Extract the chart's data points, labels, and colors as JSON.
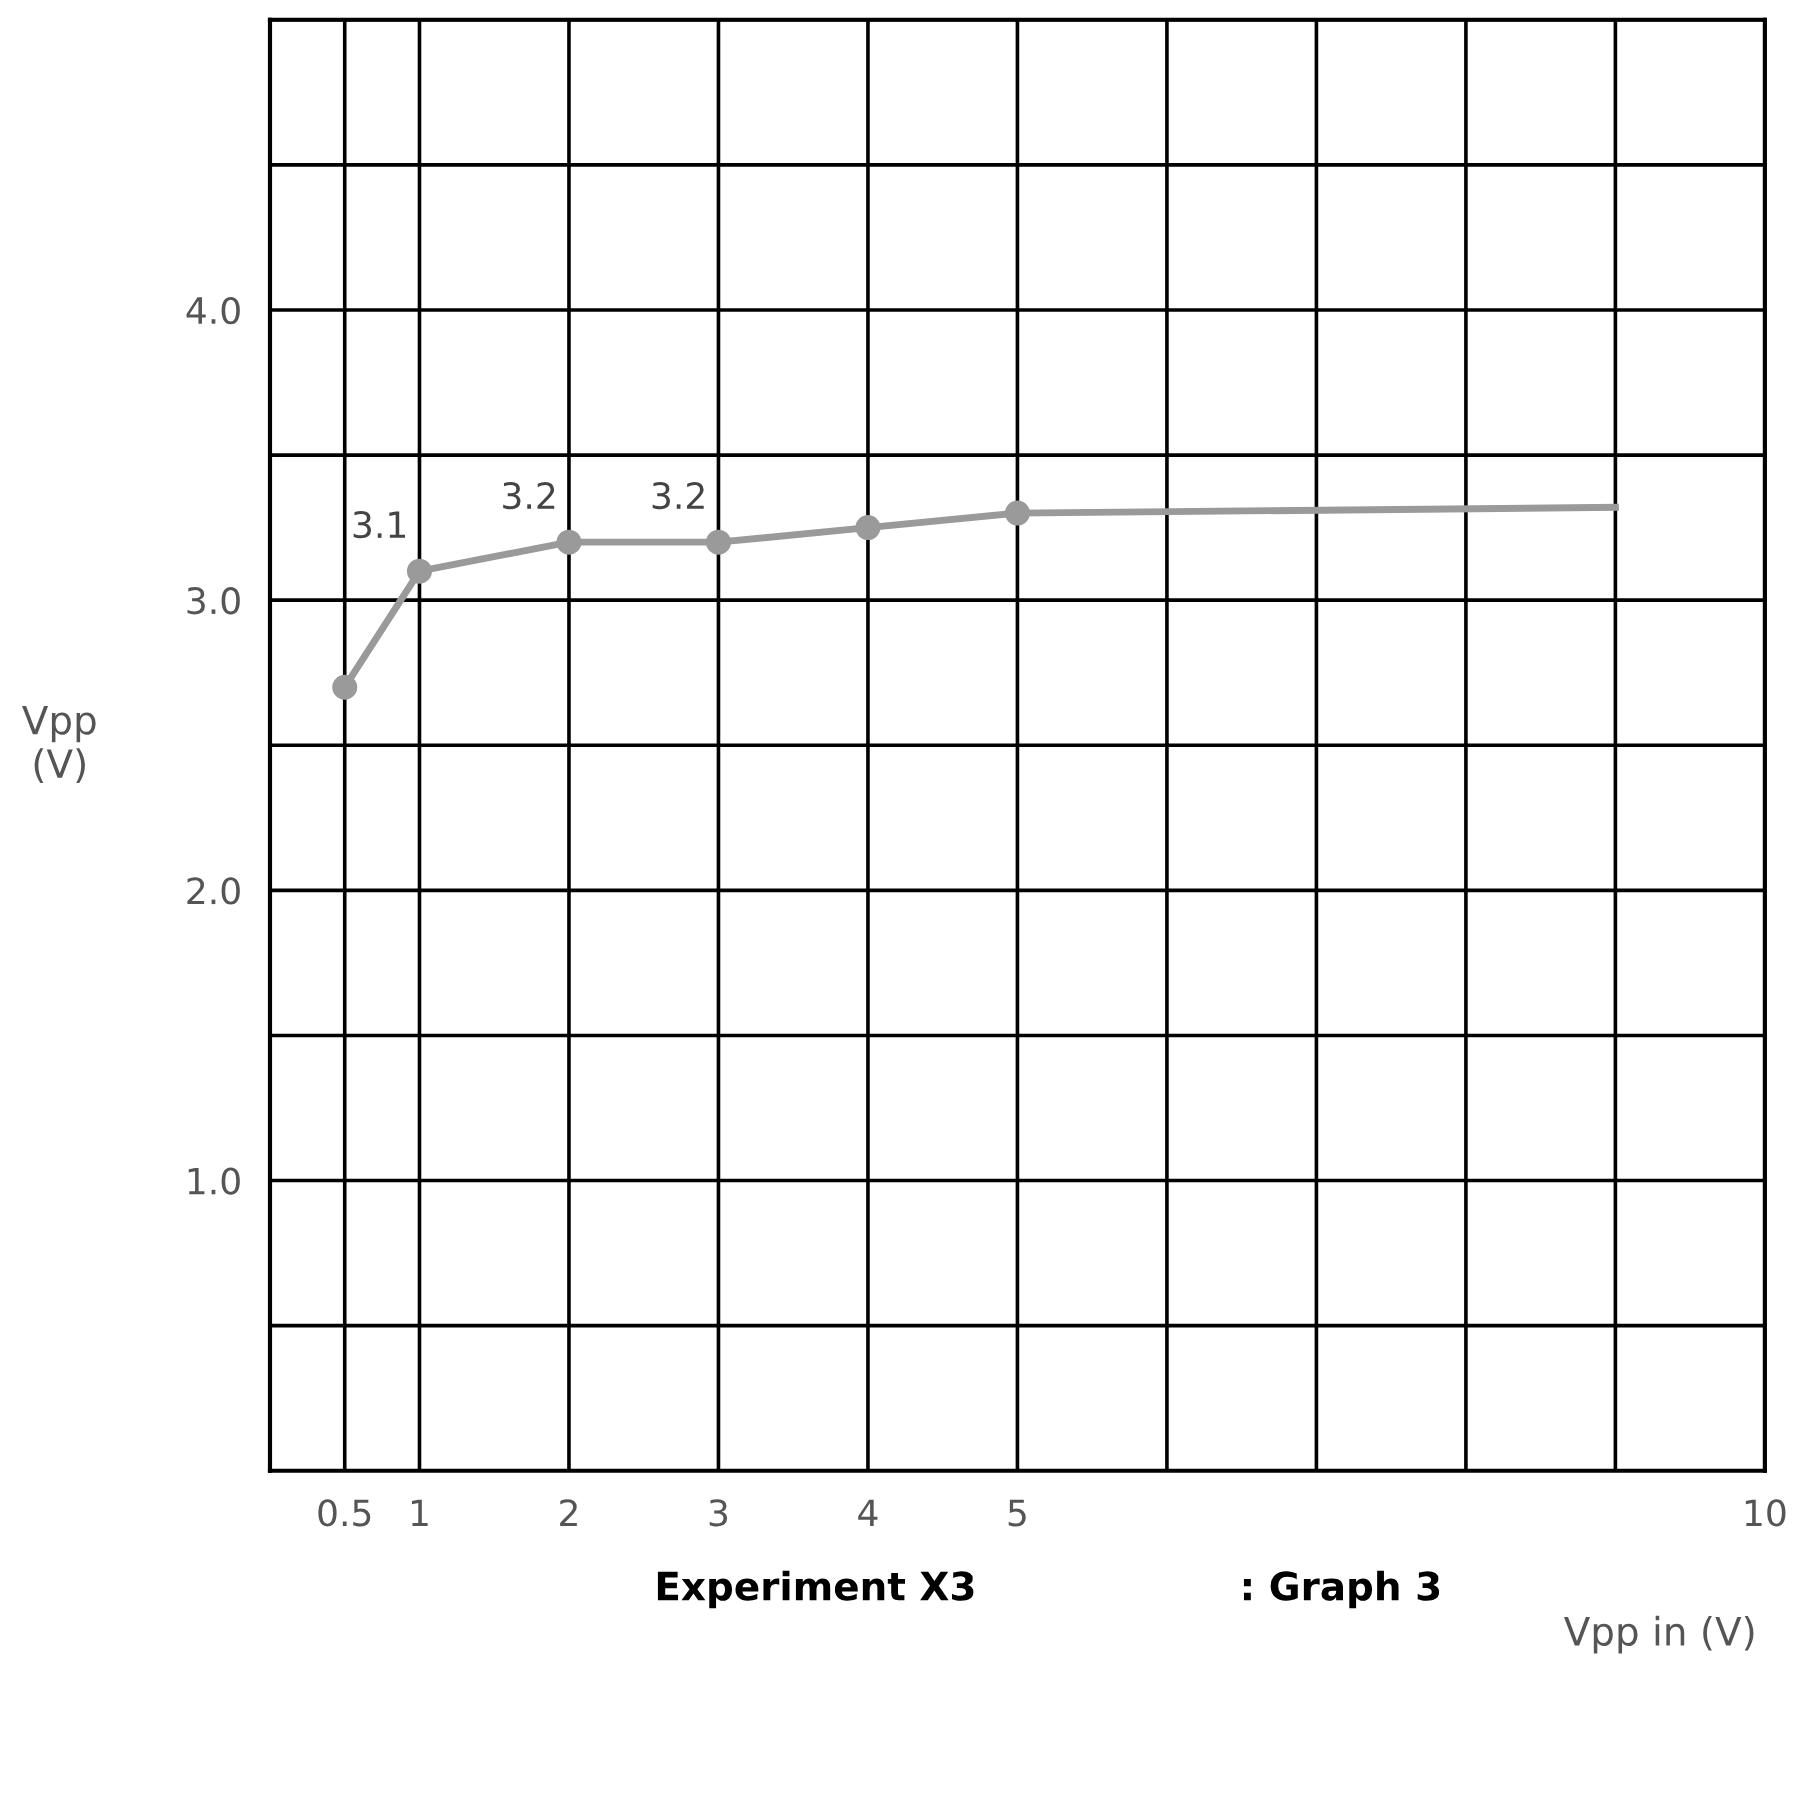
{
  "chart_data": {
    "type": "line",
    "xlabel": "Vpp in (V)",
    "ylabel": "Vpp\n(V)",
    "annotations": [
      "Experiment X3",
      ": Graph 3"
    ],
    "series": [
      {
        "x": [
          0.5,
          1,
          2,
          3,
          4,
          5
        ],
        "values": [
          2.7,
          3.1,
          3.2,
          3.2,
          3.25,
          3.3
        ],
        "color": "#9a9a9a",
        "marker": "circle",
        "value_labels": [
          null,
          "3.1",
          "3.2",
          "3.2",
          null,
          null
        ]
      },
      {
        "x": [
          5,
          9
        ],
        "values": [
          3.3,
          3.32
        ],
        "color": "#9a9a9a"
      }
    ],
    "xlim": [
      0,
      10
    ],
    "ylim": [
      0,
      5
    ],
    "xticks": [
      {
        "value": 0,
        "label": null
      },
      {
        "value": 0.5,
        "label": "0.5"
      },
      1,
      2,
      3,
      4,
      5,
      {
        "value": 6,
        "label": null
      },
      {
        "value": 7,
        "label": null
      },
      {
        "value": 8,
        "label": null
      },
      {
        "value": 9,
        "label": null
      },
      10
    ],
    "yticks": [
      {
        "value": 0,
        "label": null
      },
      {
        "value": 0.5,
        "label": null
      },
      {
        "value": 1,
        "label": "1.0"
      },
      {
        "value": 1.5,
        "label": null
      },
      {
        "value": 2,
        "label": "2.0"
      },
      {
        "value": 2.5,
        "label": null
      },
      {
        "value": 3,
        "label": "3.0"
      },
      {
        "value": 3.5,
        "label": null
      },
      {
        "value": 4,
        "label": "4.0"
      },
      {
        "value": 4.5,
        "label": null
      },
      {
        "value": 5,
        "label": null
      }
    ],
    "grid": true
  }
}
